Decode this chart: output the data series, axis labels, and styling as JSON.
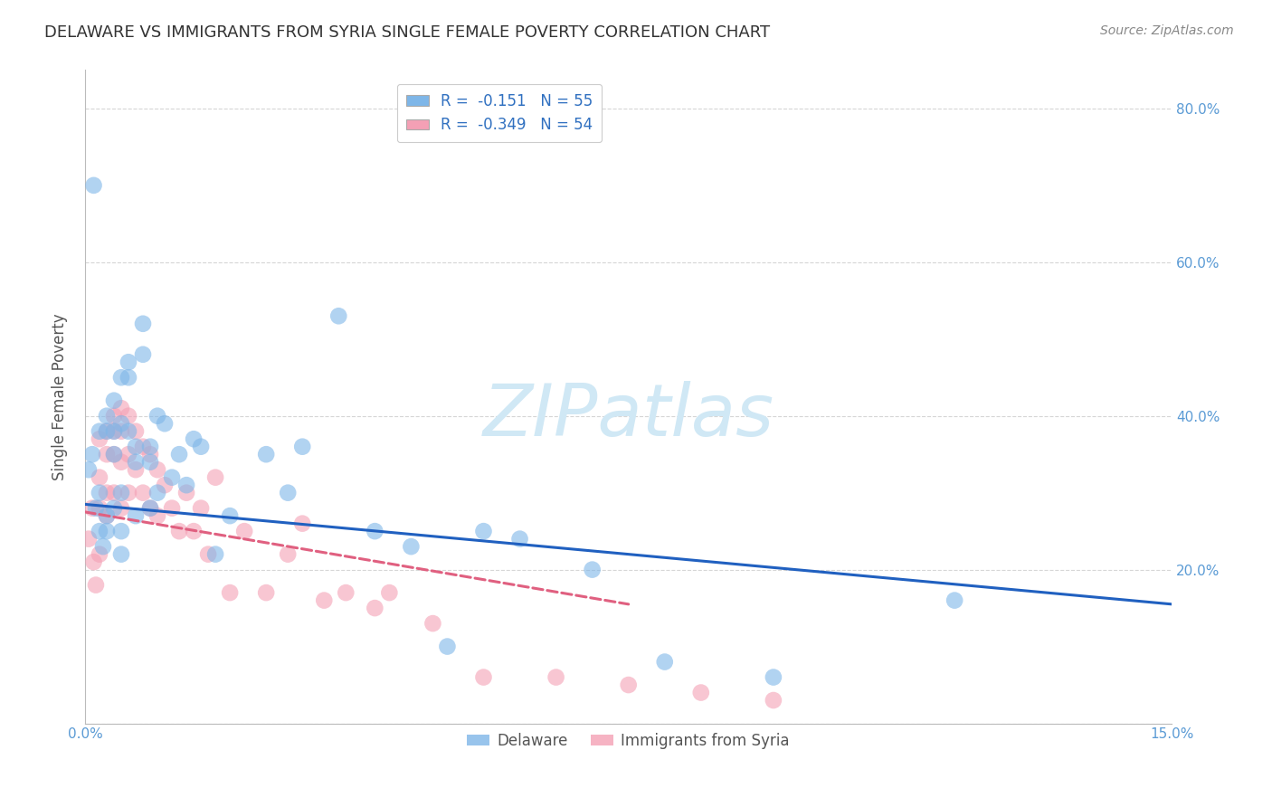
{
  "title": "DELAWARE VS IMMIGRANTS FROM SYRIA SINGLE FEMALE POVERTY CORRELATION CHART",
  "source": "Source: ZipAtlas.com",
  "ylabel": "Single Female Poverty",
  "xlim": [
    0.0,
    0.15
  ],
  "ylim": [
    0.0,
    0.85
  ],
  "yticks": [
    0.0,
    0.2,
    0.4,
    0.6,
    0.8
  ],
  "ytick_labels": [
    "",
    "20.0%",
    "40.0%",
    "60.0%",
    "80.0%"
  ],
  "xticks": [
    0.0,
    0.15
  ],
  "xtick_labels": [
    "0.0%",
    "15.0%"
  ],
  "delaware_R": -0.151,
  "delaware_N": 55,
  "syria_R": -0.349,
  "syria_N": 54,
  "delaware_color": "#7EB6E8",
  "syria_color": "#F4A0B5",
  "delaware_line_color": "#2060C0",
  "syria_line_color": "#E06080",
  "background_color": "#FFFFFF",
  "grid_color": "#CCCCCC",
  "title_color": "#333333",
  "axis_label_color": "#555555",
  "tick_label_color": "#5B9BD5",
  "watermark_color": "#D0E8F5",
  "delaware_x": [
    0.0005,
    0.001,
    0.0012,
    0.0015,
    0.002,
    0.002,
    0.002,
    0.0025,
    0.003,
    0.003,
    0.003,
    0.003,
    0.004,
    0.004,
    0.004,
    0.004,
    0.005,
    0.005,
    0.005,
    0.005,
    0.005,
    0.006,
    0.006,
    0.006,
    0.007,
    0.007,
    0.007,
    0.008,
    0.008,
    0.009,
    0.009,
    0.009,
    0.01,
    0.01,
    0.011,
    0.012,
    0.013,
    0.014,
    0.015,
    0.016,
    0.018,
    0.02,
    0.025,
    0.028,
    0.03,
    0.035,
    0.04,
    0.045,
    0.05,
    0.055,
    0.06,
    0.07,
    0.08,
    0.095,
    0.12
  ],
  "delaware_y": [
    0.33,
    0.35,
    0.7,
    0.28,
    0.3,
    0.25,
    0.38,
    0.23,
    0.4,
    0.38,
    0.27,
    0.25,
    0.38,
    0.42,
    0.35,
    0.28,
    0.39,
    0.45,
    0.3,
    0.25,
    0.22,
    0.47,
    0.45,
    0.38,
    0.36,
    0.34,
    0.27,
    0.52,
    0.48,
    0.36,
    0.34,
    0.28,
    0.4,
    0.3,
    0.39,
    0.32,
    0.35,
    0.31,
    0.37,
    0.36,
    0.22,
    0.27,
    0.35,
    0.3,
    0.36,
    0.53,
    0.25,
    0.23,
    0.1,
    0.25,
    0.24,
    0.2,
    0.08,
    0.06,
    0.16
  ],
  "syria_x": [
    0.0005,
    0.001,
    0.0012,
    0.0015,
    0.002,
    0.002,
    0.002,
    0.002,
    0.003,
    0.003,
    0.003,
    0.003,
    0.004,
    0.004,
    0.004,
    0.004,
    0.005,
    0.005,
    0.005,
    0.005,
    0.006,
    0.006,
    0.006,
    0.007,
    0.007,
    0.008,
    0.008,
    0.009,
    0.009,
    0.01,
    0.01,
    0.011,
    0.012,
    0.013,
    0.014,
    0.015,
    0.016,
    0.017,
    0.018,
    0.02,
    0.022,
    0.025,
    0.028,
    0.03,
    0.033,
    0.036,
    0.04,
    0.042,
    0.048,
    0.055,
    0.065,
    0.075,
    0.085,
    0.095
  ],
  "syria_y": [
    0.24,
    0.28,
    0.21,
    0.18,
    0.37,
    0.32,
    0.28,
    0.22,
    0.38,
    0.35,
    0.3,
    0.27,
    0.4,
    0.38,
    0.35,
    0.3,
    0.41,
    0.38,
    0.34,
    0.28,
    0.4,
    0.35,
    0.3,
    0.38,
    0.33,
    0.36,
    0.3,
    0.35,
    0.28,
    0.33,
    0.27,
    0.31,
    0.28,
    0.25,
    0.3,
    0.25,
    0.28,
    0.22,
    0.32,
    0.17,
    0.25,
    0.17,
    0.22,
    0.26,
    0.16,
    0.17,
    0.15,
    0.17,
    0.13,
    0.06,
    0.06,
    0.05,
    0.04,
    0.03
  ],
  "del_line_x0": 0.0,
  "del_line_x1": 0.15,
  "del_line_y0": 0.285,
  "del_line_y1": 0.155,
  "syr_line_x0": 0.0,
  "syr_line_x1": 0.075,
  "syr_line_y0": 0.275,
  "syr_line_y1": 0.155
}
